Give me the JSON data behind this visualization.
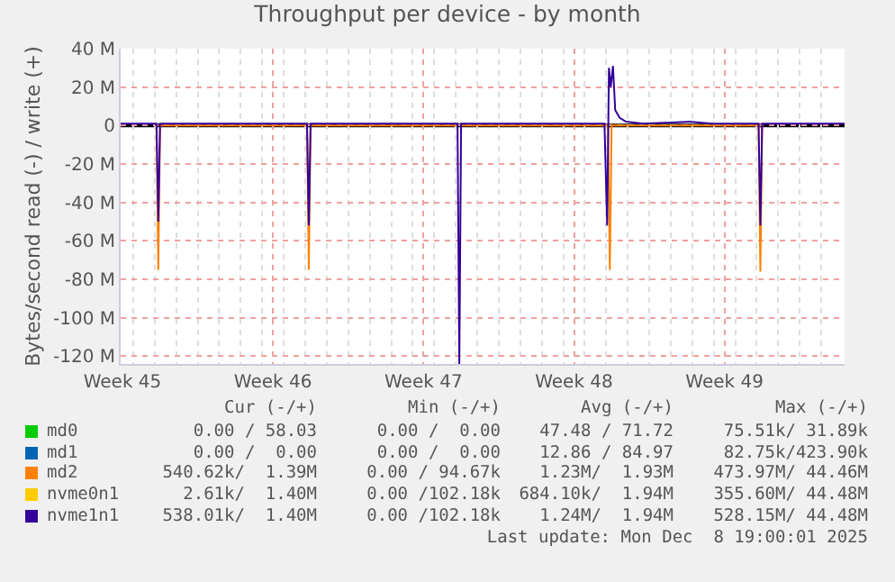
{
  "chart_data": {
    "type": "line",
    "title": "Throughput per device - by month",
    "ylabel": "Bytes/second read (-) / write (+)",
    "xlim": [
      "2025-11-06T10:00",
      "2025-12-10T02:00"
    ],
    "xticks": [
      {
        "value": "2025-11-06T12:00",
        "label": "Week 45"
      },
      {
        "value": "2025-11-13T12:00",
        "label": "Week 46"
      },
      {
        "value": "2025-11-20T12:00",
        "label": "Week 47"
      },
      {
        "value": "2025-11-27T12:00",
        "label": "Week 48"
      },
      {
        "value": "2025-12-04T12:00",
        "label": "Week 49"
      }
    ],
    "ylim": [
      -124000000,
      40000000
    ],
    "yticks": [
      {
        "value": 40000000,
        "label": "40 M"
      },
      {
        "value": 20000000,
        "label": "20 M"
      },
      0,
      {
        "value": -20000000,
        "label": "-20 M"
      },
      {
        "value": -40000000,
        "label": "-40 M"
      },
      {
        "value": -60000000,
        "label": "-60 M"
      },
      {
        "value": -80000000,
        "label": "-80 M"
      },
      {
        "value": -100000000,
        "label": "-100 M"
      },
      {
        "value": -120000000,
        "label": "-120 M"
      }
    ],
    "grid": true,
    "legend": "bottom",
    "marker": "none",
    "line_style": "solid",
    "ref_lines": [
      {
        "axis": "y",
        "value": 0,
        "color": "#000000"
      }
    ],
    "series": [
      {
        "name": "md0",
        "color": "#00cc00",
        "values": [
          null
        ]
      },
      {
        "name": "md1",
        "color": "#0066b3",
        "values": [
          null
        ]
      },
      {
        "name": "md2",
        "color": "#ff8000",
        "x": [
          "2025-11-08T02:00",
          "2025-11-08T04:00",
          "2025-11-08T06:00",
          "2025-11-15T02:00",
          "2025-11-15T04:00",
          "2025-11-15T06:00",
          "2025-11-22T02:00",
          "2025-11-22T04:00",
          "2025-11-22T06:00",
          "2025-11-29T02:00",
          "2025-11-29T04:00",
          "2025-11-29T06:00",
          "2025-12-06T02:00",
          "2025-12-06T04:00",
          "2025-12-06T06:00"
        ],
        "values": [
          0,
          -75000000,
          0,
          0,
          -75000000,
          0,
          0,
          null,
          0,
          0,
          -75000000,
          0,
          0,
          -76000000,
          0
        ]
      },
      {
        "name": "nvme0n1",
        "color": "#ffcc00",
        "values": [
          null
        ]
      },
      {
        "name": "nvme1n1",
        "color": "#330099",
        "x": [
          "2025-11-06T10:00",
          "2025-11-08T02:00",
          "2025-11-08T04:00",
          "2025-11-08T06:00",
          "2025-11-15T02:00",
          "2025-11-15T04:00",
          "2025-11-15T06:00",
          "2025-11-22T02:00",
          "2025-11-22T04:00",
          "2025-11-22T06:00",
          "2025-11-28T22:00",
          "2025-11-29T01:00",
          "2025-11-29T03:00",
          "2025-11-29T05:00",
          "2025-11-29T07:30",
          "2025-11-29T10:00",
          "2025-11-29T15:00",
          "2025-11-29T22:00",
          "2025-11-30T17:00",
          "2025-12-02T20:00",
          "2025-12-03T22:00",
          "2025-12-06T02:00",
          "2025-12-06T04:00",
          "2025-12-06T06:00",
          "2025-12-10T02:00"
        ],
        "values": [
          1000000,
          1000000,
          -50000000,
          1000000,
          1000000,
          -52000000,
          1000000,
          1000000,
          -124000000,
          1000000,
          1000000,
          -52000000,
          30000000,
          20000000,
          31000000,
          8000000,
          4000000,
          2000000,
          1000000,
          2000000,
          1000000,
          1000000,
          -52000000,
          1000000,
          1000000
        ]
      }
    ],
    "annotations": [
      "Cur (-/+)",
      "Min (-/+)",
      "Avg (-/+)",
      "Max (-/+)",
      "0.00 / 58.03",
      "0.00 /  0.00",
      "47.48 / 71.72",
      "75.51k/ 31.89k",
      "0.00 /  0.00",
      "0.00 /  0.00",
      "12.86 / 84.97",
      "82.75k/423.90k",
      "540.62k/  1.39M",
      "0.00 / 94.67k",
      "1.23M/  1.93M",
      "473.97M/ 44.46M",
      "2.61k/  1.40M",
      "0.00 /102.18k",
      "684.10k/  1.94M",
      "355.60M/ 44.48M",
      "538.01k/  1.40M",
      "0.00 /102.18k",
      "1.24M/  1.94M",
      "528.15M/ 44.48M",
      "Last update: Mon Dec  8 19:00:01 2025"
    ]
  }
}
